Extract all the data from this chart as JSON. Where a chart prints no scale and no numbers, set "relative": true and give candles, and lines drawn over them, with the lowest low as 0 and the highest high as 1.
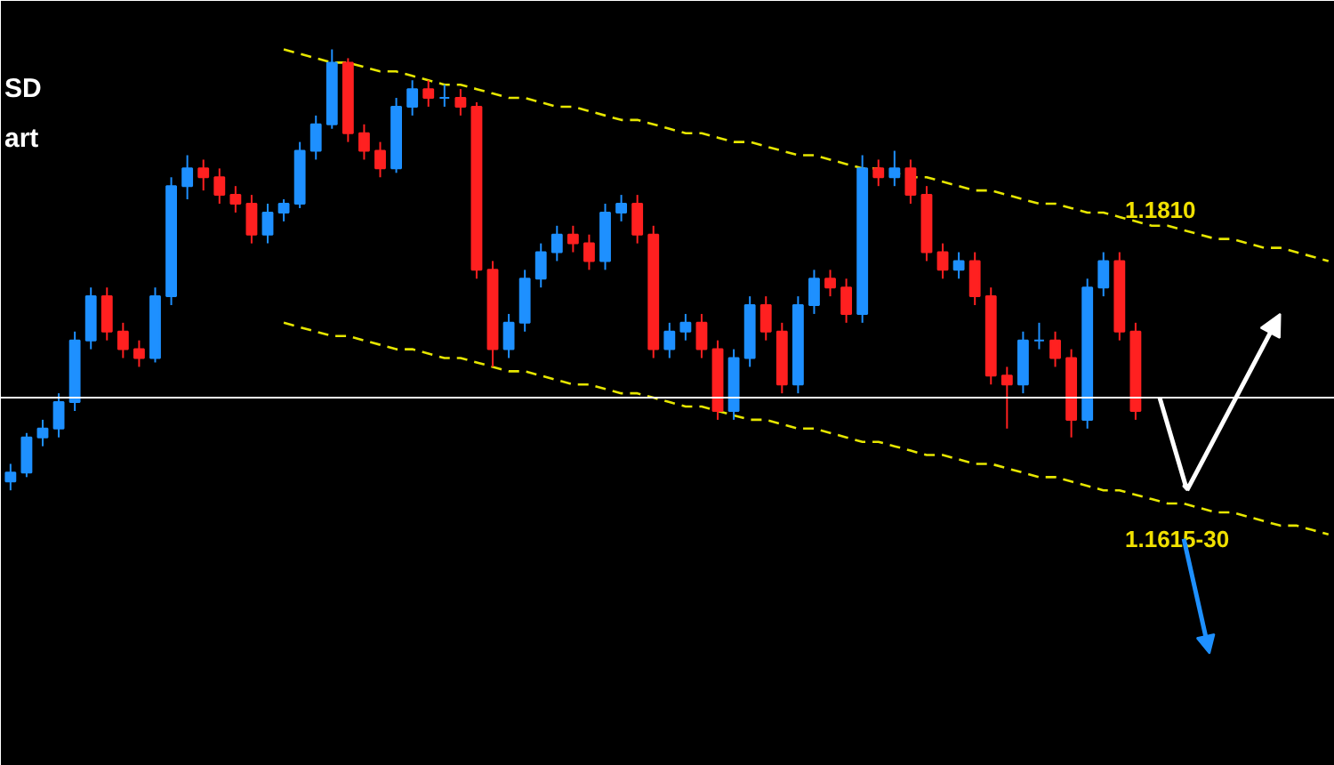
{
  "chart_data": {
    "type": "candlestick",
    "relative": true,
    "grid": false,
    "categories": [
      null,
      null,
      null,
      null,
      null,
      null,
      null,
      null,
      null,
      null,
      null,
      null,
      null,
      null,
      null,
      null,
      null,
      null,
      null,
      null,
      null,
      null,
      null,
      null,
      null,
      null,
      null,
      null,
      null,
      null,
      null,
      null,
      null,
      null,
      null,
      null,
      null,
      null,
      null,
      null,
      null,
      null,
      null,
      null,
      null,
      null,
      null,
      null,
      null,
      null,
      null,
      null,
      null,
      null,
      null,
      null,
      null,
      null,
      null,
      null,
      null,
      null,
      null,
      null,
      null,
      null,
      null,
      null,
      null,
      null,
      null,
      null,
      null,
      null,
      null,
      null,
      null,
      null,
      null,
      null,
      null,
      null,
      null
    ],
    "ohlc": [
      [
        0.02,
        0.06,
        0,
        0.04
      ],
      [
        0.04,
        0.13,
        0.03,
        0.12
      ],
      [
        0.12,
        0.16,
        0.1,
        0.14
      ],
      [
        0.14,
        0.22,
        0.12,
        0.2
      ],
      [
        0.2,
        0.36,
        0.18,
        0.34
      ],
      [
        0.34,
        0.46,
        0.32,
        0.44
      ],
      [
        0.44,
        0.46,
        0.34,
        0.36
      ],
      [
        0.36,
        0.38,
        0.3,
        0.32
      ],
      [
        0.32,
        0.34,
        0.28,
        0.3
      ],
      [
        0.3,
        0.46,
        0.29,
        0.44
      ],
      [
        0.44,
        0.71,
        0.42,
        0.69
      ],
      [
        0.69,
        0.76,
        0.66,
        0.73
      ],
      [
        0.73,
        0.75,
        0.68,
        0.71
      ],
      [
        0.71,
        0.73,
        0.65,
        0.67
      ],
      [
        0.67,
        0.69,
        0.63,
        0.65
      ],
      [
        0.65,
        0.67,
        0.56,
        0.58
      ],
      [
        0.58,
        0.65,
        0.56,
        0.63
      ],
      [
        0.63,
        0.66,
        0.61,
        0.65
      ],
      [
        0.65,
        0.79,
        0.64,
        0.77
      ],
      [
        0.77,
        0.85,
        0.75,
        0.83
      ],
      [
        0.83,
        1,
        0.82,
        0.97
      ],
      [
        0.97,
        0.98,
        0.79,
        0.81
      ],
      [
        0.81,
        0.83,
        0.75,
        0.77
      ],
      [
        0.77,
        0.79,
        0.71,
        0.73
      ],
      [
        0.73,
        0.89,
        0.72,
        0.87
      ],
      [
        0.87,
        0.93,
        0.85,
        0.91
      ],
      [
        0.91,
        0.93,
        0.87,
        0.89
      ],
      [
        0.89,
        0.92,
        0.87,
        0.89
      ],
      [
        0.89,
        0.91,
        0.85,
        0.87
      ],
      [
        0.87,
        0.88,
        0.48,
        0.5
      ],
      [
        0.5,
        0.52,
        0.28,
        0.32
      ],
      [
        0.32,
        0.4,
        0.3,
        0.38
      ],
      [
        0.38,
        0.5,
        0.36,
        0.48
      ],
      [
        0.48,
        0.56,
        0.46,
        0.54
      ],
      [
        0.54,
        0.6,
        0.52,
        0.58
      ],
      [
        0.58,
        0.6,
        0.54,
        0.56
      ],
      [
        0.56,
        0.58,
        0.5,
        0.52
      ],
      [
        0.52,
        0.65,
        0.5,
        0.63
      ],
      [
        0.63,
        0.67,
        0.61,
        0.65
      ],
      [
        0.65,
        0.67,
        0.56,
        0.58
      ],
      [
        0.58,
        0.6,
        0.3,
        0.32
      ],
      [
        0.32,
        0.38,
        0.3,
        0.36
      ],
      [
        0.36,
        0.4,
        0.34,
        0.38
      ],
      [
        0.38,
        0.4,
        0.3,
        0.32
      ],
      [
        0.32,
        0.34,
        0.16,
        0.18
      ],
      [
        0.18,
        0.32,
        0.16,
        0.3
      ],
      [
        0.3,
        0.44,
        0.28,
        0.42
      ],
      [
        0.42,
        0.44,
        0.34,
        0.36
      ],
      [
        0.36,
        0.38,
        0.22,
        0.24
      ],
      [
        0.24,
        0.44,
        0.22,
        0.42
      ],
      [
        0.42,
        0.5,
        0.4,
        0.48
      ],
      [
        0.48,
        0.5,
        0.44,
        0.46
      ],
      [
        0.46,
        0.48,
        0.38,
        0.4
      ],
      [
        0.4,
        0.76,
        0.38,
        0.73
      ],
      [
        0.73,
        0.75,
        0.69,
        0.71
      ],
      [
        0.71,
        0.77,
        0.69,
        0.73
      ],
      [
        0.73,
        0.75,
        0.65,
        0.67
      ],
      [
        0.67,
        0.69,
        0.52,
        0.54
      ],
      [
        0.54,
        0.56,
        0.48,
        0.5
      ],
      [
        0.5,
        0.54,
        0.48,
        0.52
      ],
      [
        0.52,
        0.54,
        0.42,
        0.44
      ],
      [
        0.44,
        0.46,
        0.24,
        0.26
      ],
      [
        0.26,
        0.28,
        0.14,
        0.24
      ],
      [
        0.24,
        0.36,
        0.22,
        0.34
      ],
      [
        0.34,
        0.38,
        0.32,
        0.34
      ],
      [
        0.34,
        0.36,
        0.28,
        0.3
      ],
      [
        0.3,
        0.32,
        0.12,
        0.16
      ],
      [
        0.16,
        0.48,
        0.14,
        0.46
      ],
      [
        0.46,
        0.54,
        0.44,
        0.52
      ],
      [
        0.52,
        0.54,
        0.34,
        0.36
      ],
      [
        0.36,
        0.38,
        0.16,
        0.18
      ],
      null,
      null,
      null,
      null,
      null,
      null,
      null,
      null,
      null,
      null,
      null,
      null
    ],
    "colors": [
      "#1e90ff",
      "#1e90ff",
      "#1e90ff",
      "#1e90ff",
      "#1e90ff",
      "#1e90ff",
      "#ff2020",
      "#ff2020",
      "#ff2020",
      "#1e90ff",
      "#1e90ff",
      "#1e90ff",
      "#ff2020",
      "#ff2020",
      "#ff2020",
      "#ff2020",
      "#1e90ff",
      "#1e90ff",
      "#1e90ff",
      "#1e90ff",
      "#1e90ff",
      "#ff2020",
      "#ff2020",
      "#ff2020",
      "#1e90ff",
      "#1e90ff",
      "#ff2020",
      "#1e90ff",
      "#ff2020",
      "#ff2020",
      "#ff2020",
      "#1e90ff",
      "#1e90ff",
      "#1e90ff",
      "#1e90ff",
      "#ff2020",
      "#ff2020",
      "#1e90ff",
      "#1e90ff",
      "#ff2020",
      "#ff2020",
      "#1e90ff",
      "#1e90ff",
      "#ff2020",
      "#ff2020",
      "#1e90ff",
      "#1e90ff",
      "#ff2020",
      "#ff2020",
      "#1e90ff",
      "#1e90ff",
      "#ff2020",
      "#ff2020",
      "#1e90ff",
      "#ff2020",
      "#1e90ff",
      "#ff2020",
      "#ff2020",
      "#ff2020",
      "#1e90ff",
      "#ff2020",
      "#ff2020",
      "#ff2020",
      "#1e90ff",
      "#1e90ff",
      "#ff2020",
      "#ff2020",
      "#1e90ff",
      "#1e90ff",
      "#ff2020",
      "#ff2020",
      null,
      null,
      null,
      null,
      null,
      null,
      null,
      null,
      null,
      null,
      null,
      null
    ],
    "series": [
      {
        "type": "line",
        "line_style": "dashed",
        "color": "#e6e600",
        "values": [
          null,
          null,
          null,
          null,
          null,
          null,
          null,
          null,
          null,
          null,
          null,
          null,
          null,
          null,
          null,
          null,
          null,
          1.0,
          0.99,
          0.98,
          0.97,
          0.97,
          0.96,
          0.95,
          0.95,
          0.94,
          0.93,
          0.92,
          0.92,
          0.91,
          0.9,
          0.89,
          0.89,
          0.88,
          0.87,
          0.87,
          0.86,
          0.85,
          0.84,
          0.84,
          0.83,
          0.82,
          0.81,
          0.81,
          0.8,
          0.79,
          0.79,
          0.78,
          0.77,
          0.76,
          0.76,
          0.75,
          0.74,
          0.73,
          0.73,
          0.72,
          0.71,
          0.71,
          0.7,
          0.69,
          0.68,
          0.68,
          0.67,
          0.66,
          0.65,
          0.65,
          0.64,
          0.63,
          0.63,
          0.62,
          0.61,
          0.6,
          0.6,
          0.59,
          0.58,
          0.57,
          0.57,
          0.56,
          0.55,
          0.55,
          0.54,
          0.53,
          0.52
        ]
      },
      {
        "type": "line",
        "line_style": "dashed",
        "color": "#e6e600",
        "values": [
          null,
          null,
          null,
          null,
          null,
          null,
          null,
          null,
          null,
          null,
          null,
          null,
          null,
          null,
          null,
          null,
          null,
          0.38,
          0.37,
          0.36,
          0.35,
          0.35,
          0.34,
          0.33,
          0.32,
          0.32,
          0.31,
          0.3,
          0.3,
          0.29,
          0.28,
          0.27,
          0.27,
          0.26,
          0.25,
          0.24,
          0.24,
          0.23,
          0.22,
          0.22,
          0.21,
          0.2,
          0.19,
          0.19,
          0.18,
          0.17,
          0.16,
          0.16,
          0.15,
          0.14,
          0.14,
          0.13,
          0.12,
          0.11,
          0.11,
          0.1,
          0.09,
          0.08,
          0.08,
          0.07,
          0.06,
          0.06,
          0.05,
          0.04,
          0.03,
          0.03,
          0.02,
          0.01,
          0,
          0,
          -0.01,
          -0.02,
          -0.03,
          -0.03,
          -0.04,
          -0.05,
          -0.05,
          -0.06,
          -0.07,
          -0.08,
          -0.08,
          -0.09,
          -0.1
        ]
      }
    ],
    "ref_lines": [
      {
        "axis": "y",
        "value": 0.21,
        "color": "#ffffff"
      }
    ],
    "annotations": [
      "SD",
      "art",
      "1.1810",
      "1.1615-30"
    ]
  }
}
